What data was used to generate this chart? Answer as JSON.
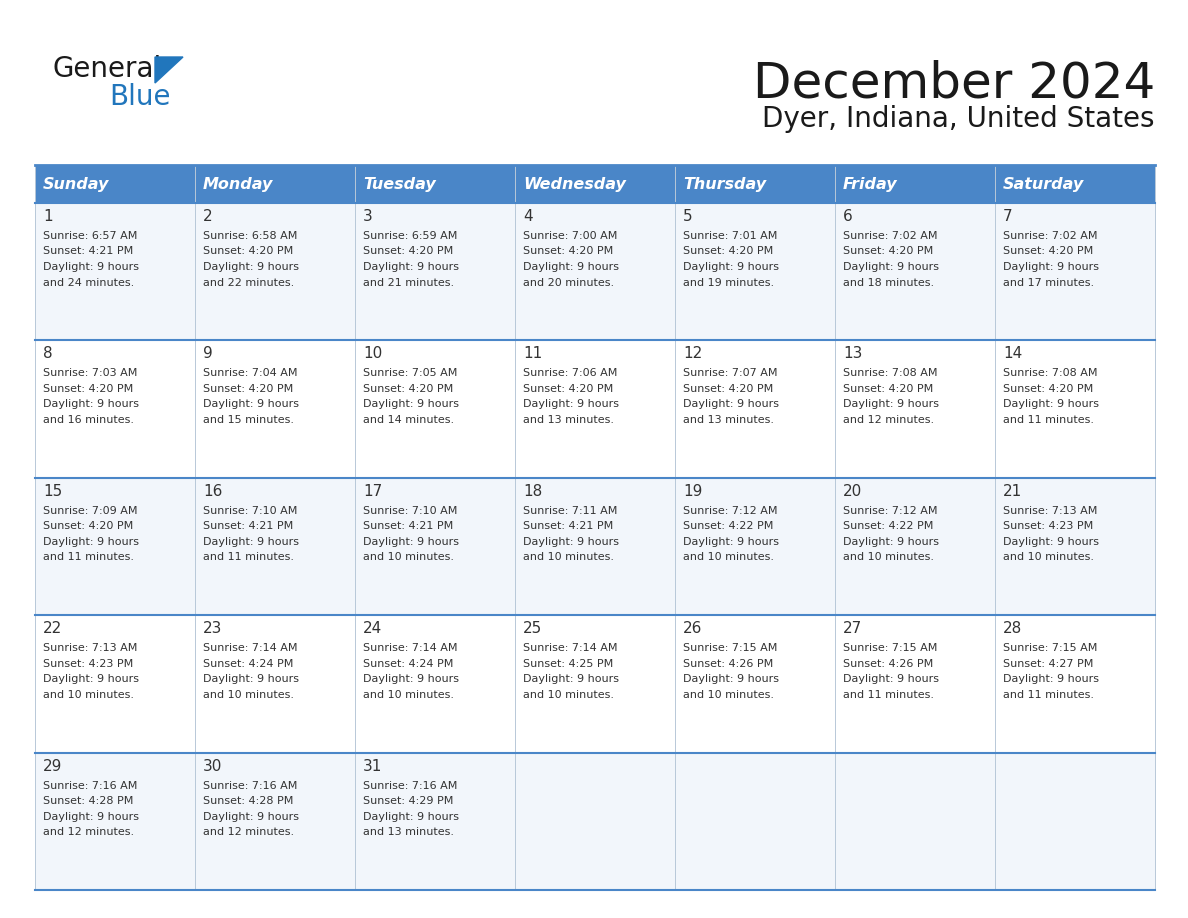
{
  "title": "December 2024",
  "subtitle": "Dyer, Indiana, United States",
  "header_color": "#4a86c8",
  "header_text_color": "#ffffff",
  "bg_color": "#ffffff",
  "row_bg_odd": "#f2f6fb",
  "row_bg_even": "#ffffff",
  "border_color": "#4a86c8",
  "cell_border_color": "#b8c8d8",
  "day_names": [
    "Sunday",
    "Monday",
    "Tuesday",
    "Wednesday",
    "Thursday",
    "Friday",
    "Saturday"
  ],
  "days": [
    {
      "day": 1,
      "col": 0,
      "row": 0,
      "sunrise": "6:57 AM",
      "sunset": "4:21 PM",
      "daylight_suffix": "24 minutes."
    },
    {
      "day": 2,
      "col": 1,
      "row": 0,
      "sunrise": "6:58 AM",
      "sunset": "4:20 PM",
      "daylight_suffix": "22 minutes."
    },
    {
      "day": 3,
      "col": 2,
      "row": 0,
      "sunrise": "6:59 AM",
      "sunset": "4:20 PM",
      "daylight_suffix": "21 minutes."
    },
    {
      "day": 4,
      "col": 3,
      "row": 0,
      "sunrise": "7:00 AM",
      "sunset": "4:20 PM",
      "daylight_suffix": "20 minutes."
    },
    {
      "day": 5,
      "col": 4,
      "row": 0,
      "sunrise": "7:01 AM",
      "sunset": "4:20 PM",
      "daylight_suffix": "19 minutes."
    },
    {
      "day": 6,
      "col": 5,
      "row": 0,
      "sunrise": "7:02 AM",
      "sunset": "4:20 PM",
      "daylight_suffix": "18 minutes."
    },
    {
      "day": 7,
      "col": 6,
      "row": 0,
      "sunrise": "7:02 AM",
      "sunset": "4:20 PM",
      "daylight_suffix": "17 minutes."
    },
    {
      "day": 8,
      "col": 0,
      "row": 1,
      "sunrise": "7:03 AM",
      "sunset": "4:20 PM",
      "daylight_suffix": "16 minutes."
    },
    {
      "day": 9,
      "col": 1,
      "row": 1,
      "sunrise": "7:04 AM",
      "sunset": "4:20 PM",
      "daylight_suffix": "15 minutes."
    },
    {
      "day": 10,
      "col": 2,
      "row": 1,
      "sunrise": "7:05 AM",
      "sunset": "4:20 PM",
      "daylight_suffix": "14 minutes."
    },
    {
      "day": 11,
      "col": 3,
      "row": 1,
      "sunrise": "7:06 AM",
      "sunset": "4:20 PM",
      "daylight_suffix": "13 minutes."
    },
    {
      "day": 12,
      "col": 4,
      "row": 1,
      "sunrise": "7:07 AM",
      "sunset": "4:20 PM",
      "daylight_suffix": "13 minutes."
    },
    {
      "day": 13,
      "col": 5,
      "row": 1,
      "sunrise": "7:08 AM",
      "sunset": "4:20 PM",
      "daylight_suffix": "12 minutes."
    },
    {
      "day": 14,
      "col": 6,
      "row": 1,
      "sunrise": "7:08 AM",
      "sunset": "4:20 PM",
      "daylight_suffix": "11 minutes."
    },
    {
      "day": 15,
      "col": 0,
      "row": 2,
      "sunrise": "7:09 AM",
      "sunset": "4:20 PM",
      "daylight_suffix": "11 minutes."
    },
    {
      "day": 16,
      "col": 1,
      "row": 2,
      "sunrise": "7:10 AM",
      "sunset": "4:21 PM",
      "daylight_suffix": "11 minutes."
    },
    {
      "day": 17,
      "col": 2,
      "row": 2,
      "sunrise": "7:10 AM",
      "sunset": "4:21 PM",
      "daylight_suffix": "10 minutes."
    },
    {
      "day": 18,
      "col": 3,
      "row": 2,
      "sunrise": "7:11 AM",
      "sunset": "4:21 PM",
      "daylight_suffix": "10 minutes."
    },
    {
      "day": 19,
      "col": 4,
      "row": 2,
      "sunrise": "7:12 AM",
      "sunset": "4:22 PM",
      "daylight_suffix": "10 minutes."
    },
    {
      "day": 20,
      "col": 5,
      "row": 2,
      "sunrise": "7:12 AM",
      "sunset": "4:22 PM",
      "daylight_suffix": "10 minutes."
    },
    {
      "day": 21,
      "col": 6,
      "row": 2,
      "sunrise": "7:13 AM",
      "sunset": "4:23 PM",
      "daylight_suffix": "10 minutes."
    },
    {
      "day": 22,
      "col": 0,
      "row": 3,
      "sunrise": "7:13 AM",
      "sunset": "4:23 PM",
      "daylight_suffix": "10 minutes."
    },
    {
      "day": 23,
      "col": 1,
      "row": 3,
      "sunrise": "7:14 AM",
      "sunset": "4:24 PM",
      "daylight_suffix": "10 minutes."
    },
    {
      "day": 24,
      "col": 2,
      "row": 3,
      "sunrise": "7:14 AM",
      "sunset": "4:24 PM",
      "daylight_suffix": "10 minutes."
    },
    {
      "day": 25,
      "col": 3,
      "row": 3,
      "sunrise": "7:14 AM",
      "sunset": "4:25 PM",
      "daylight_suffix": "10 minutes."
    },
    {
      "day": 26,
      "col": 4,
      "row": 3,
      "sunrise": "7:15 AM",
      "sunset": "4:26 PM",
      "daylight_suffix": "10 minutes."
    },
    {
      "day": 27,
      "col": 5,
      "row": 3,
      "sunrise": "7:15 AM",
      "sunset": "4:26 PM",
      "daylight_suffix": "11 minutes."
    },
    {
      "day": 28,
      "col": 6,
      "row": 3,
      "sunrise": "7:15 AM",
      "sunset": "4:27 PM",
      "daylight_suffix": "11 minutes."
    },
    {
      "day": 29,
      "col": 0,
      "row": 4,
      "sunrise": "7:16 AM",
      "sunset": "4:28 PM",
      "daylight_suffix": "12 minutes."
    },
    {
      "day": 30,
      "col": 1,
      "row": 4,
      "sunrise": "7:16 AM",
      "sunset": "4:28 PM",
      "daylight_suffix": "12 minutes."
    },
    {
      "day": 31,
      "col": 2,
      "row": 4,
      "sunrise": "7:16 AM",
      "sunset": "4:29 PM",
      "daylight_suffix": "13 minutes."
    }
  ],
  "num_rows": 5,
  "logo_color_general": "#1a1a1a",
  "logo_color_blue": "#2176bc",
  "logo_triangle_color": "#2176bc",
  "title_color": "#1a1a1a",
  "subtitle_color": "#1a1a1a",
  "text_color": "#333333"
}
